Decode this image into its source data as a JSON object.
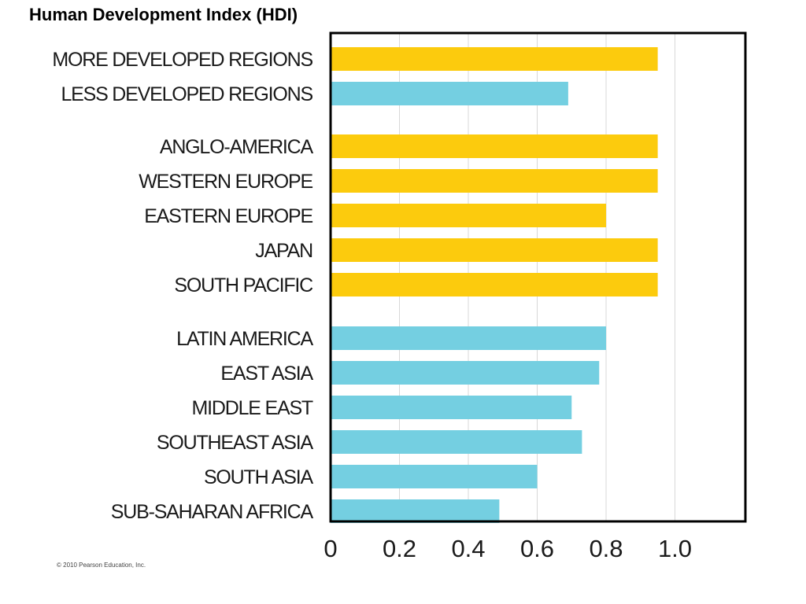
{
  "title": "Human Development Index (HDI)",
  "copyright": "© 2010 Pearson Education, Inc.",
  "colors": {
    "developed": "#fccb0d",
    "developing": "#74cfe1",
    "grid": "#d8d8d8",
    "frame": "#000000"
  },
  "chart_data": {
    "type": "bar",
    "orientation": "horizontal",
    "title": "Human Development Index (HDI)",
    "xlabel": "",
    "ylabel": "",
    "xlim": [
      0,
      1.2
    ],
    "x_ticks": [
      0,
      0.2,
      0.4,
      0.6,
      0.8,
      1.0
    ],
    "x_tick_labels": [
      "0",
      "0.2",
      "0.4",
      "0.6",
      "0.8",
      "1.0"
    ],
    "grid": true,
    "legend": "none",
    "categories": [
      "MORE DEVELOPED REGIONS",
      "LESS DEVELOPED REGIONS",
      "ANGLO-AMERICA",
      "WESTERN EUROPE",
      "EASTERN EUROPE",
      "JAPAN",
      "SOUTH PACIFIC",
      "LATIN AMERICA",
      "EAST ASIA",
      "MIDDLE EAST",
      "SOUTHEAST ASIA",
      "SOUTH ASIA",
      "SUB-SAHARAN AFRICA"
    ],
    "values": [
      0.95,
      0.69,
      0.95,
      0.95,
      0.8,
      0.95,
      0.95,
      0.8,
      0.78,
      0.7,
      0.73,
      0.6,
      0.49
    ],
    "bar_colors": [
      "developed",
      "developing",
      "developed",
      "developed",
      "developed",
      "developed",
      "developed",
      "developing",
      "developing",
      "developing",
      "developing",
      "developing",
      "developing"
    ]
  }
}
